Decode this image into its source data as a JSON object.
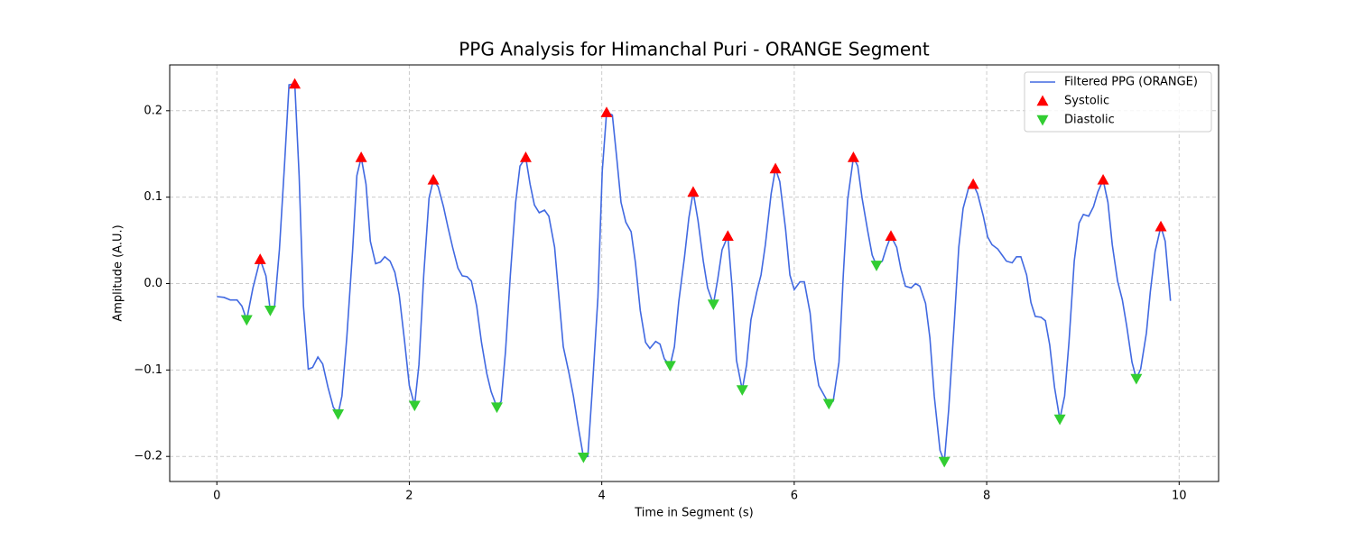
{
  "chart_data": {
    "type": "line",
    "title": "PPG Analysis for Himanchal Puri - ORANGE Segment",
    "xlabel": "Time in Segment (s)",
    "ylabel": "Amplitude (A.U.)",
    "xlim": [
      -0.49,
      10.41
    ],
    "ylim": [
      -0.229,
      0.253
    ],
    "xticks": [
      0,
      2,
      4,
      6,
      8,
      10
    ],
    "yticks": [
      {
        "value": -0.2,
        "label": "−0.2"
      },
      {
        "value": -0.1,
        "label": "−0.1"
      },
      {
        "value": 0,
        "label": "0.0"
      },
      0.1,
      0.2
    ],
    "grid": true,
    "legend": "upper right",
    "series": [
      {
        "name": "Filtered PPG (ORANGE)",
        "type": "line",
        "color": "#4169e1",
        "x": [
          0,
          0.075,
          0.14,
          0.21,
          0.26,
          0.31,
          0.375,
          0.45,
          0.51,
          0.555,
          0.6,
          0.65,
          0.705,
          0.75,
          0.81,
          0.855,
          0.9,
          0.95,
          0.995,
          1.05,
          1.1,
          1.155,
          1.21,
          1.26,
          1.3,
          1.35,
          1.41,
          1.455,
          1.5,
          1.55,
          1.595,
          1.65,
          1.7,
          1.745,
          1.8,
          1.85,
          1.895,
          1.95,
          2.0,
          2.055,
          2.1,
          2.15,
          2.205,
          2.25,
          2.3,
          2.355,
          2.4,
          2.45,
          2.505,
          2.55,
          2.6,
          2.645,
          2.7,
          2.75,
          2.805,
          2.85,
          2.91,
          2.955,
          3.0,
          3.05,
          3.105,
          3.15,
          3.21,
          3.255,
          3.3,
          3.35,
          3.405,
          3.45,
          3.51,
          3.555,
          3.6,
          3.66,
          3.705,
          3.75,
          3.81,
          3.855,
          3.9,
          3.96,
          4.005,
          4.05,
          4.11,
          4.155,
          4.2,
          4.25,
          4.305,
          4.35,
          4.4,
          4.455,
          4.5,
          4.56,
          4.605,
          4.65,
          4.71,
          4.755,
          4.8,
          4.86,
          4.905,
          4.95,
          5.0,
          5.055,
          5.1,
          5.16,
          5.205,
          5.25,
          5.31,
          5.355,
          5.4,
          5.46,
          5.505,
          5.55,
          5.61,
          5.655,
          5.7,
          5.76,
          5.805,
          5.85,
          5.91,
          5.955,
          6.0,
          6.06,
          6.105,
          6.165,
          6.21,
          6.255,
          6.315,
          6.36,
          6.405,
          6.465,
          6.51,
          6.555,
          6.615,
          6.66,
          6.705,
          6.765,
          6.81,
          6.855,
          6.915,
          6.96,
          7.005,
          7.065,
          7.11,
          7.155,
          7.215,
          7.26,
          7.305,
          7.365,
          7.41,
          7.455,
          7.515,
          7.56,
          7.605,
          7.665,
          7.71,
          7.755,
          7.815,
          7.86,
          7.905,
          7.965,
          8.01,
          8.055,
          8.115,
          8.16,
          8.205,
          8.265,
          8.31,
          8.355,
          8.415,
          8.46,
          8.505,
          8.565,
          8.61,
          8.655,
          8.705,
          8.76,
          8.81,
          8.855,
          8.91,
          8.96,
          9.005,
          9.06,
          9.11,
          9.155,
          9.21,
          9.26,
          9.305,
          9.36,
          9.41,
          9.455,
          9.51,
          9.555,
          9.6,
          9.66,
          9.7,
          9.75,
          9.81,
          9.855,
          9.91
        ],
        "values": [
          -0.015,
          -0.016,
          -0.019,
          -0.019,
          -0.026,
          -0.042,
          -0.005,
          0.028,
          0.009,
          -0.031,
          -0.026,
          0.039,
          0.141,
          0.23,
          0.231,
          0.125,
          -0.026,
          -0.099,
          -0.097,
          -0.085,
          -0.093,
          -0.12,
          -0.143,
          -0.151,
          -0.13,
          -0.063,
          0.037,
          0.125,
          0.146,
          0.115,
          0.049,
          0.023,
          0.025,
          0.031,
          0.026,
          0.013,
          -0.013,
          -0.066,
          -0.118,
          -0.141,
          -0.094,
          0.01,
          0.099,
          0.12,
          0.112,
          0.089,
          0.066,
          0.042,
          0.018,
          0.009,
          0.008,
          0.003,
          -0.026,
          -0.068,
          -0.104,
          -0.125,
          -0.143,
          -0.136,
          -0.078,
          0.01,
          0.094,
          0.136,
          0.146,
          0.115,
          0.091,
          0.082,
          0.085,
          0.078,
          0.042,
          -0.016,
          -0.073,
          -0.104,
          -0.13,
          -0.162,
          -0.201,
          -0.2,
          -0.125,
          -0.016,
          0.13,
          0.198,
          0.195,
          0.146,
          0.094,
          0.071,
          0.06,
          0.024,
          -0.031,
          -0.068,
          -0.075,
          -0.067,
          -0.07,
          -0.087,
          -0.095,
          -0.073,
          -0.021,
          0.031,
          0.076,
          0.106,
          0.073,
          0.026,
          -0.005,
          -0.024,
          0.005,
          0.039,
          0.055,
          -0.005,
          -0.089,
          -0.123,
          -0.094,
          -0.042,
          -0.01,
          0.01,
          0.045,
          0.104,
          0.133,
          0.118,
          0.063,
          0.01,
          -0.007,
          0.002,
          0.002,
          -0.034,
          -0.087,
          -0.118,
          -0.13,
          -0.139,
          -0.136,
          -0.091,
          0.01,
          0.097,
          0.146,
          0.136,
          0.099,
          0.06,
          0.033,
          0.021,
          0.026,
          0.042,
          0.055,
          0.042,
          0.016,
          -0.003,
          -0.005,
          0,
          -0.003,
          -0.023,
          -0.063,
          -0.13,
          -0.193,
          -0.206,
          -0.146,
          -0.042,
          0.042,
          0.087,
          0.112,
          0.115,
          0.104,
          0.078,
          0.054,
          0.045,
          0.04,
          0.033,
          0.026,
          0.024,
          0.031,
          0.031,
          0.01,
          -0.022,
          -0.038,
          -0.039,
          -0.043,
          -0.071,
          -0.12,
          -0.157,
          -0.13,
          -0.068,
          0.026,
          0.07,
          0.08,
          0.078,
          0.089,
          0.106,
          0.12,
          0.094,
          0.045,
          0.003,
          -0.019,
          -0.049,
          -0.091,
          -0.11,
          -0.099,
          -0.057,
          -0.01,
          0.037,
          0.066,
          0.049,
          -0.02
        ]
      },
      {
        "name": "Systolic",
        "type": "scatter",
        "marker": "triangle-up",
        "color": "#ff0000",
        "x": [
          0.45,
          0.81,
          1.5,
          2.25,
          3.21,
          4.05,
          4.95,
          5.31,
          5.805,
          6.615,
          7.005,
          7.86,
          9.21,
          9.81
        ],
        "values": [
          0.028,
          0.231,
          0.146,
          0.12,
          0.146,
          0.198,
          0.106,
          0.055,
          0.133,
          0.146,
          0.055,
          0.115,
          0.12,
          0.066
        ]
      },
      {
        "name": "Diastolic",
        "type": "scatter",
        "marker": "triangle-down",
        "color": "#32cd32",
        "x": [
          0.31,
          0.555,
          1.26,
          2.055,
          2.91,
          3.81,
          4.71,
          5.16,
          5.46,
          6.36,
          6.855,
          7.56,
          8.76,
          9.555
        ],
        "values": [
          -0.042,
          -0.031,
          -0.151,
          -0.141,
          -0.143,
          -0.201,
          -0.095,
          -0.024,
          -0.123,
          -0.139,
          0.021,
          -0.206,
          -0.157,
          -0.11
        ]
      }
    ]
  }
}
